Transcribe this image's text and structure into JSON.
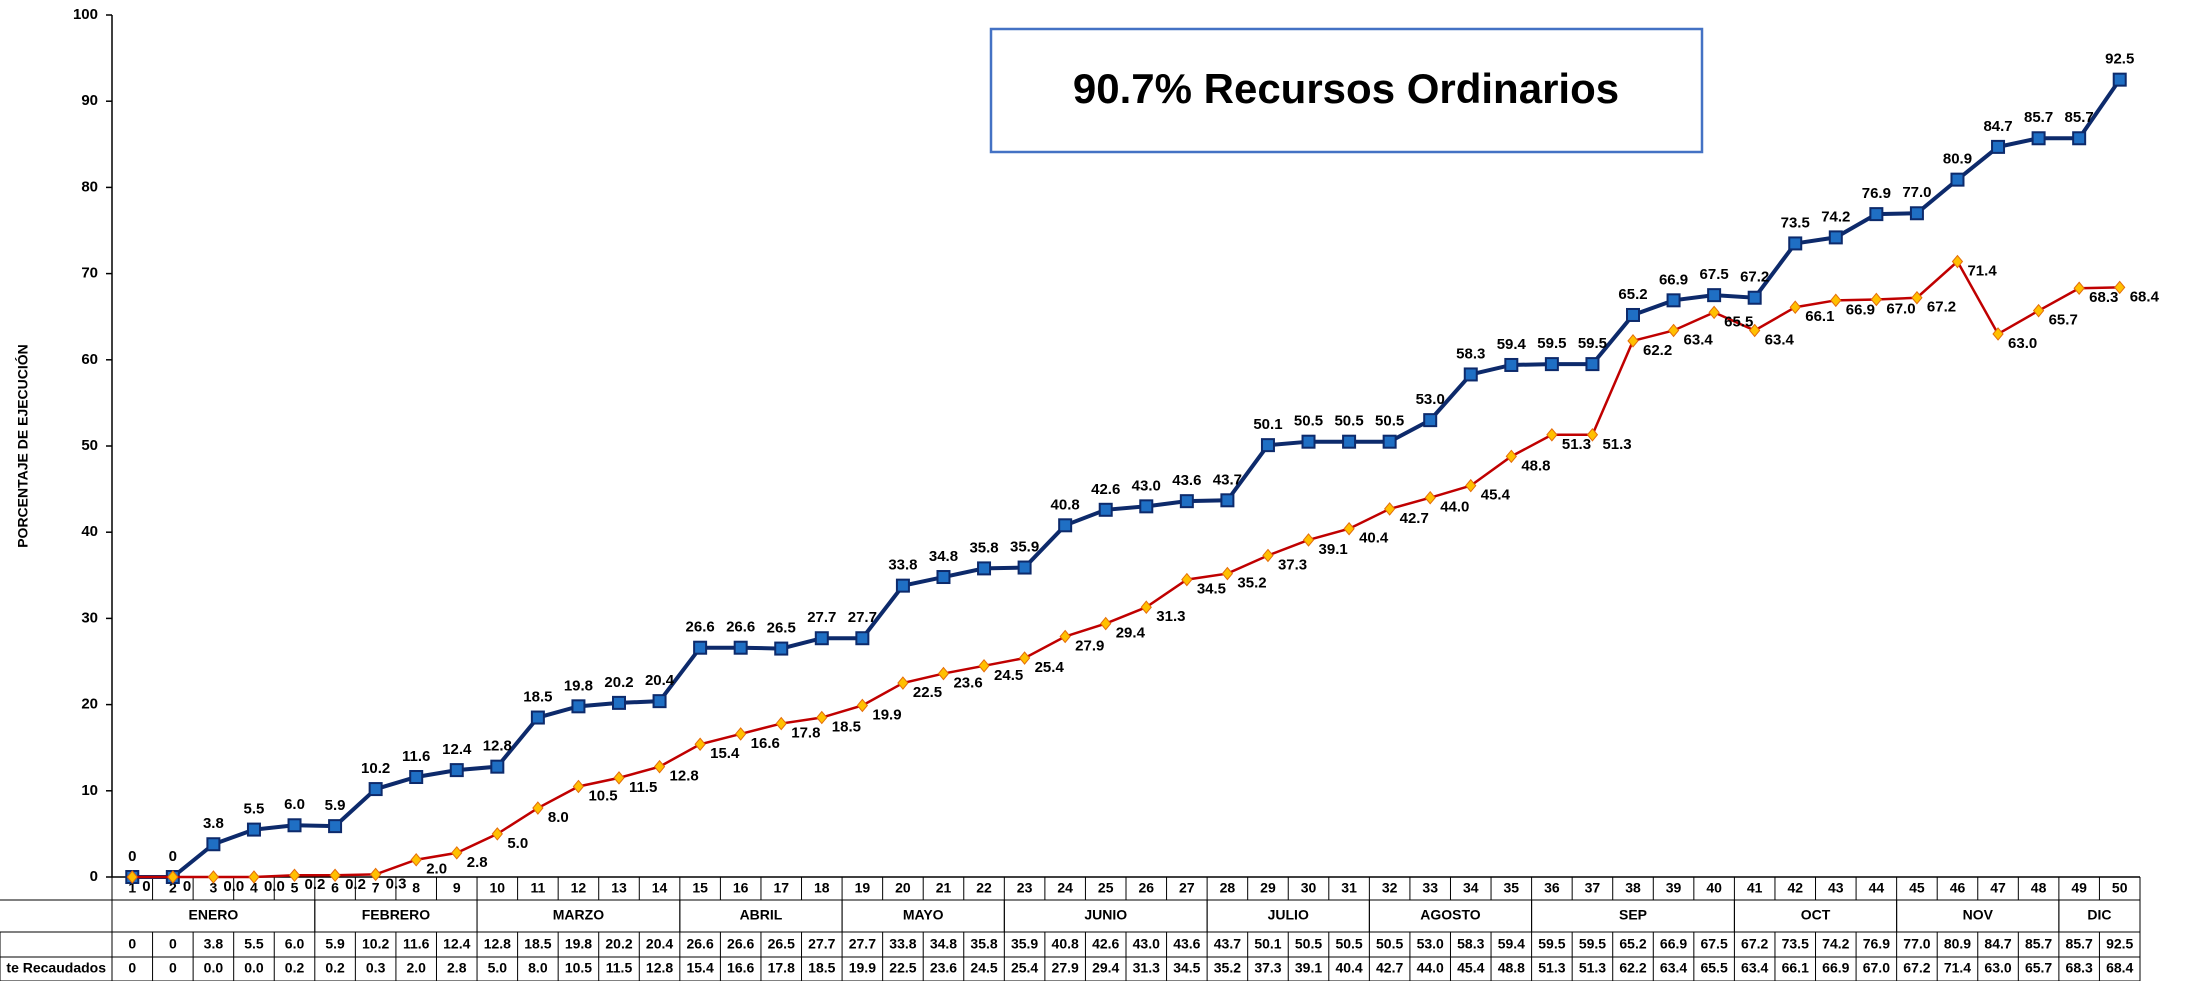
{
  "chart_data": {
    "type": "line",
    "title": "90.7% Recursos Ordinarios",
    "ylabel": "PORCENTAJE DE EJECUCIÓN",
    "categories": [
      "1",
      "2",
      "3",
      "4",
      "5",
      "6",
      "7",
      "8",
      "9",
      "10",
      "11",
      "12",
      "13",
      "14",
      "15",
      "16",
      "17",
      "18",
      "19",
      "20",
      "21",
      "22",
      "23",
      "24",
      "25",
      "26",
      "27",
      "28",
      "29",
      "30",
      "31",
      "32",
      "33",
      "34",
      "35",
      "36",
      "37",
      "38",
      "39",
      "40",
      "41",
      "42",
      "43",
      "44",
      "45",
      "46",
      "47",
      "48",
      "49",
      "50"
    ],
    "months": [
      "ENERO",
      "ENERO",
      "ENERO",
      "ENERO",
      "ENERO",
      "FEBRERO",
      "FEBRERO",
      "FEBRERO",
      "FEBRERO",
      "MARZO",
      "MARZO",
      "MARZO",
      "MARZO",
      "MARZO",
      "ABRIL",
      "ABRIL",
      "ABRIL",
      "ABRIL",
      "MAYO",
      "MAYO",
      "MAYO",
      "MAYO",
      "JUNIO",
      "JUNIO",
      "JUNIO",
      "JUNIO",
      "JUNIO",
      "JULIO",
      "JULIO",
      "JULIO",
      "JULIO",
      "AGOSTO",
      "AGOSTO",
      "AGOSTO",
      "AGOSTO",
      "SEP",
      "SEP",
      "SEP",
      "SEP",
      "SEP",
      "OCT",
      "OCT",
      "OCT",
      "OCT",
      "NOV",
      "NOV",
      "NOV",
      "NOV",
      "DIC",
      "DIC"
    ],
    "series": [
      {
        "color": "#0d2a6b",
        "marker_color": "#1f6fc4",
        "marker": "square",
        "values": [
          0,
          0,
          3.8,
          5.5,
          6.0,
          5.9,
          10.2,
          11.6,
          12.4,
          12.8,
          18.5,
          19.8,
          20.2,
          20.4,
          26.6,
          26.6,
          26.5,
          27.7,
          27.7,
          33.8,
          34.8,
          35.8,
          35.9,
          40.8,
          42.6,
          43.0,
          43.6,
          43.7,
          50.1,
          50.5,
          50.5,
          50.5,
          53.0,
          58.3,
          59.4,
          59.5,
          59.5,
          65.2,
          66.9,
          67.5,
          67.2,
          73.5,
          74.2,
          76.9,
          77.0,
          80.9,
          84.7,
          85.7,
          85.7,
          92.5
        ],
        "value_labels": [
          "0",
          "0",
          "3.8",
          "5.5",
          "6.0",
          "5.9",
          "10.2",
          "11.6",
          "12.4",
          "12.8",
          "18.5",
          "19.8",
          "20.2",
          "20.4",
          "26.6",
          "26.6",
          "26.5",
          "27.7",
          "27.7",
          "33.8",
          "34.8",
          "35.8",
          "35.9",
          "40.8",
          "42.6",
          "43.0",
          "43.6",
          "43.7",
          "50.1",
          "50.5",
          "50.5",
          "50.5",
          "53.0",
          "58.3",
          "59.4",
          "59.5",
          "59.5",
          "65.2",
          "66.9",
          "67.5",
          "67.2",
          "73.5",
          "74.2",
          "76.9",
          "77.0",
          "80.9",
          "84.7",
          "85.7",
          "85.7",
          "92.5"
        ]
      },
      {
        "name": "te Recaudados",
        "color": "#c00000",
        "marker_color": "#ffc000",
        "marker": "diamond",
        "values": [
          0,
          0,
          0.0,
          0.0,
          0.2,
          0.2,
          0.3,
          2.0,
          2.8,
          5.0,
          8.0,
          10.5,
          11.5,
          12.8,
          15.4,
          16.6,
          17.8,
          18.5,
          19.9,
          22.5,
          23.6,
          24.5,
          25.4,
          27.9,
          29.4,
          31.3,
          34.5,
          35.2,
          37.3,
          39.1,
          40.4,
          42.7,
          44.0,
          45.4,
          48.8,
          51.3,
          51.3,
          62.2,
          63.4,
          65.5,
          63.4,
          66.1,
          66.9,
          67.0,
          67.2,
          71.4,
          63.0,
          65.7,
          68.3,
          68.4
        ],
        "value_labels": [
          "0",
          "0",
          "0.0",
          "0.0",
          "0.2",
          "0.2",
          "0.3",
          "2.0",
          "2.8",
          "5.0",
          "8.0",
          "10.5",
          "11.5",
          "12.8",
          "15.4",
          "16.6",
          "17.8",
          "18.5",
          "19.9",
          "22.5",
          "23.6",
          "24.5",
          "25.4",
          "27.9",
          "29.4",
          "31.3",
          "34.5",
          "35.2",
          "37.3",
          "39.1",
          "40.4",
          "42.7",
          "44.0",
          "45.4",
          "48.8",
          "51.3",
          "51.3",
          "62.2",
          "63.4",
          "65.5",
          "63.4",
          "66.1",
          "66.9",
          "67.0",
          "67.2",
          "71.4",
          "63.0",
          "65.7",
          "68.3",
          "68.4"
        ]
      }
    ],
    "ylim": [
      0,
      100
    ],
    "yticks": [
      0,
      10,
      20,
      30,
      40,
      50,
      60,
      70,
      80,
      90,
      100
    ]
  }
}
